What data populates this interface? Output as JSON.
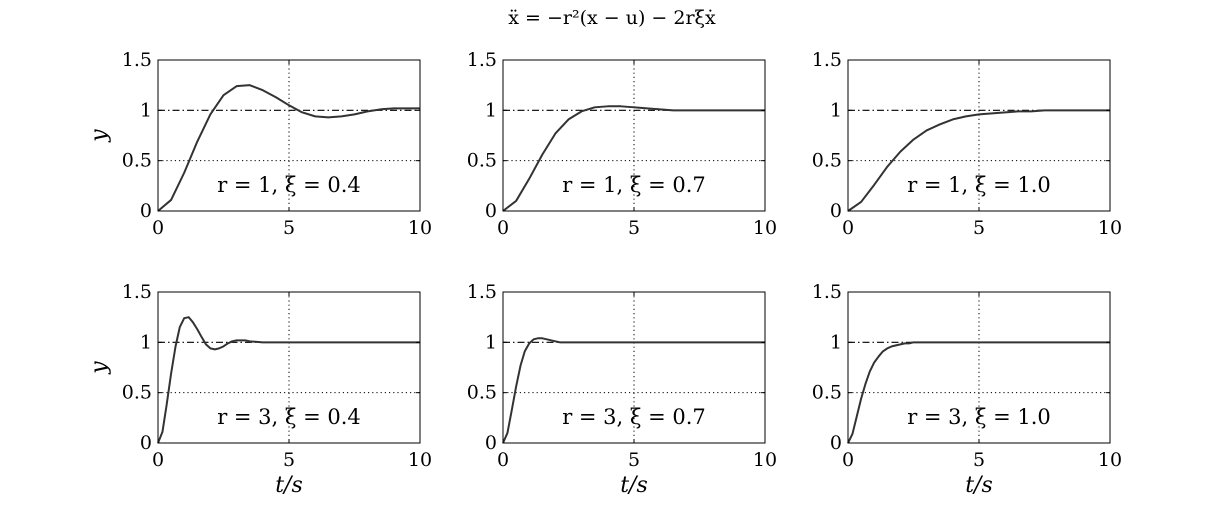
{
  "figure_title": "ẍ = −r²(x − u) − 2rξẋ",
  "chart_data": [
    {
      "type": "line",
      "annotation": "r = 1, ξ = 0.4",
      "ylabel": "y",
      "xlabel": "",
      "xlim": [
        0,
        10
      ],
      "ylim": [
        0,
        1.5
      ],
      "xticks": [
        "0",
        "5",
        "10"
      ],
      "yticks": [
        "0",
        "0.5",
        "1",
        "1.5"
      ],
      "grid_x": [
        5
      ],
      "grid_y": [
        0.5,
        1
      ],
      "reference_line": 1,
      "series": [
        {
          "params": {
            "r": 1,
            "xi": 0.4
          },
          "x": [
            0,
            0.5,
            1,
            1.5,
            2,
            2.5,
            3,
            3.5,
            4,
            4.5,
            5,
            5.5,
            6,
            6.5,
            7,
            7.5,
            8,
            8.5,
            9,
            9.5,
            10
          ],
          "y": [
            0,
            0.11,
            0.38,
            0.69,
            0.96,
            1.15,
            1.24,
            1.25,
            1.2,
            1.13,
            1.05,
            0.98,
            0.94,
            0.93,
            0.94,
            0.96,
            0.99,
            1.01,
            1.02,
            1.02,
            1.02
          ]
        }
      ]
    },
    {
      "type": "line",
      "annotation": "r = 1, ξ = 0.7",
      "ylabel": "",
      "xlabel": "",
      "xlim": [
        0,
        10
      ],
      "ylim": [
        0,
        1.5
      ],
      "xticks": [
        "0",
        "5",
        "10"
      ],
      "yticks": [
        "0",
        "0.5",
        "1",
        "1.5"
      ],
      "grid_x": [
        5
      ],
      "grid_y": [
        0.5,
        1
      ],
      "reference_line": 1,
      "series": [
        {
          "params": {
            "r": 1,
            "xi": 0.7
          },
          "x": [
            0,
            0.5,
            1,
            1.5,
            2,
            2.5,
            3,
            3.5,
            4,
            4.5,
            5,
            5.5,
            6,
            6.5,
            7,
            7.5,
            8,
            8.5,
            9,
            9.5,
            10
          ],
          "y": [
            0,
            0.1,
            0.32,
            0.56,
            0.77,
            0.91,
            0.99,
            1.03,
            1.04,
            1.04,
            1.03,
            1.02,
            1.01,
            1.0,
            1.0,
            1.0,
            1.0,
            1.0,
            1.0,
            1.0,
            1.0
          ]
        }
      ]
    },
    {
      "type": "line",
      "annotation": "r = 1, ξ = 1.0",
      "ylabel": "",
      "xlabel": "",
      "xlim": [
        0,
        10
      ],
      "ylim": [
        0,
        1.5
      ],
      "xticks": [
        "0",
        "5",
        "10"
      ],
      "yticks": [
        "0",
        "0.5",
        "1",
        "1.5"
      ],
      "grid_x": [
        5
      ],
      "grid_y": [
        0.5,
        1
      ],
      "reference_line": 1,
      "series": [
        {
          "params": {
            "r": 1,
            "xi": 1.0
          },
          "x": [
            0,
            0.5,
            1,
            1.5,
            2,
            2.5,
            3,
            3.5,
            4,
            4.5,
            5,
            5.5,
            6,
            6.5,
            7,
            7.5,
            8,
            8.5,
            9,
            9.5,
            10
          ],
          "y": [
            0,
            0.09,
            0.26,
            0.44,
            0.59,
            0.71,
            0.8,
            0.86,
            0.91,
            0.94,
            0.96,
            0.97,
            0.98,
            0.99,
            0.99,
            1.0,
            1.0,
            1.0,
            1.0,
            1.0,
            1.0
          ]
        }
      ]
    },
    {
      "type": "line",
      "annotation": "r = 3, ξ = 0.4",
      "ylabel": "y",
      "xlabel": "t/s",
      "xlim": [
        0,
        10
      ],
      "ylim": [
        0,
        1.5
      ],
      "xticks": [
        "0",
        "5",
        "10"
      ],
      "yticks": [
        "0",
        "0.5",
        "1",
        "1.5"
      ],
      "grid_x": [
        5
      ],
      "grid_y": [
        0.5,
        1
      ],
      "reference_line": 1,
      "series": [
        {
          "params": {
            "r": 3,
            "xi": 0.4
          },
          "x": [
            0,
            0.17,
            0.33,
            0.5,
            0.67,
            0.83,
            1,
            1.17,
            1.33,
            1.5,
            1.67,
            1.83,
            2,
            2.17,
            2.33,
            2.5,
            2.67,
            2.83,
            3,
            3.17,
            3.33,
            3.5,
            4,
            4.5,
            5,
            6,
            7,
            8,
            9,
            10
          ],
          "y": [
            0,
            0.11,
            0.38,
            0.69,
            0.96,
            1.15,
            1.24,
            1.25,
            1.2,
            1.13,
            1.05,
            0.98,
            0.94,
            0.93,
            0.94,
            0.96,
            0.99,
            1.01,
            1.02,
            1.02,
            1.02,
            1.01,
            1.0,
            1.0,
            1.0,
            1.0,
            1.0,
            1.0,
            1.0,
            1.0
          ]
        }
      ]
    },
    {
      "type": "line",
      "annotation": "r = 3, ξ = 0.7",
      "ylabel": "",
      "xlabel": "t/s",
      "xlim": [
        0,
        10
      ],
      "ylim": [
        0,
        1.5
      ],
      "xticks": [
        "0",
        "5",
        "10"
      ],
      "yticks": [
        "0",
        "0.5",
        "1",
        "1.5"
      ],
      "grid_x": [
        5
      ],
      "grid_y": [
        0.5,
        1
      ],
      "reference_line": 1,
      "series": [
        {
          "params": {
            "r": 3,
            "xi": 0.7
          },
          "x": [
            0,
            0.17,
            0.33,
            0.5,
            0.67,
            0.83,
            1,
            1.17,
            1.33,
            1.5,
            1.67,
            1.83,
            2,
            2.17,
            2.33,
            2.5,
            3,
            3.5,
            4,
            5,
            6,
            7,
            8,
            9,
            10
          ],
          "y": [
            0,
            0.1,
            0.32,
            0.56,
            0.77,
            0.91,
            0.99,
            1.03,
            1.04,
            1.04,
            1.03,
            1.02,
            1.01,
            1.0,
            1.0,
            1.0,
            1.0,
            1.0,
            1.0,
            1.0,
            1.0,
            1.0,
            1.0,
            1.0,
            1.0
          ]
        }
      ]
    },
    {
      "type": "line",
      "annotation": "r = 3, ξ = 1.0",
      "ylabel": "",
      "xlabel": "t/s",
      "xlim": [
        0,
        10
      ],
      "ylim": [
        0,
        1.5
      ],
      "xticks": [
        "0",
        "5",
        "10"
      ],
      "yticks": [
        "0",
        "0.5",
        "1",
        "1.5"
      ],
      "grid_x": [
        5
      ],
      "grid_y": [
        0.5,
        1
      ],
      "reference_line": 1,
      "series": [
        {
          "params": {
            "r": 3,
            "xi": 1.0
          },
          "x": [
            0,
            0.17,
            0.33,
            0.5,
            0.67,
            0.83,
            1,
            1.17,
            1.33,
            1.5,
            1.67,
            1.83,
            2,
            2.17,
            2.33,
            2.5,
            3,
            3.5,
            4,
            5,
            6,
            7,
            8,
            9,
            10
          ],
          "y": [
            0,
            0.09,
            0.26,
            0.44,
            0.59,
            0.71,
            0.8,
            0.86,
            0.91,
            0.94,
            0.96,
            0.97,
            0.98,
            0.99,
            0.99,
            1.0,
            1.0,
            1.0,
            1.0,
            1.0,
            1.0,
            1.0,
            1.0,
            1.0,
            1.0
          ]
        }
      ]
    }
  ]
}
